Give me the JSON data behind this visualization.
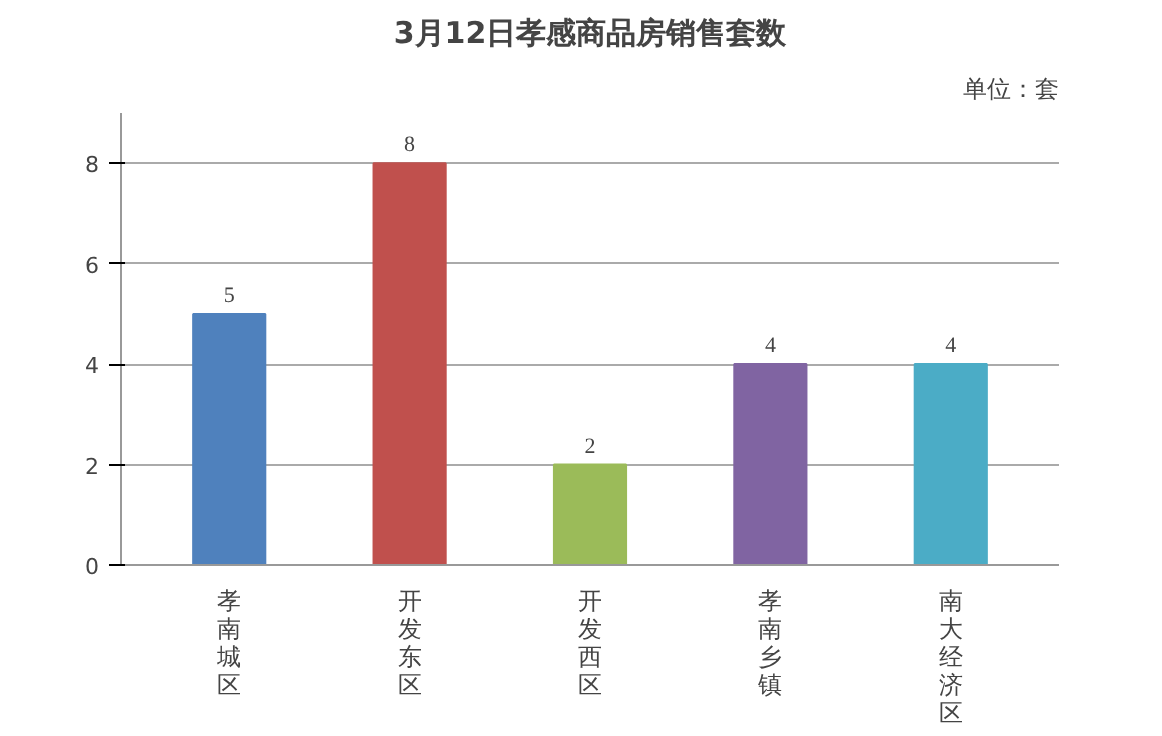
{
  "chart_data": {
    "type": "bar",
    "title": "3月12日孝感商品房销售套数",
    "annotations": [
      "单位：套"
    ],
    "categories": [
      "孝南城区",
      "开发东区",
      "开发西区",
      "孝南乡镇",
      "南大经济区"
    ],
    "values": [
      5,
      8,
      2,
      4,
      4
    ],
    "colors": [
      "#4f81bd",
      "#c0504d",
      "#9bbb59",
      "#8064a2",
      "#4bacc6"
    ],
    "ylim": [
      0,
      9
    ],
    "yticks": [
      0,
      2,
      4,
      6,
      8
    ],
    "grid": "y",
    "data_labels": true
  }
}
